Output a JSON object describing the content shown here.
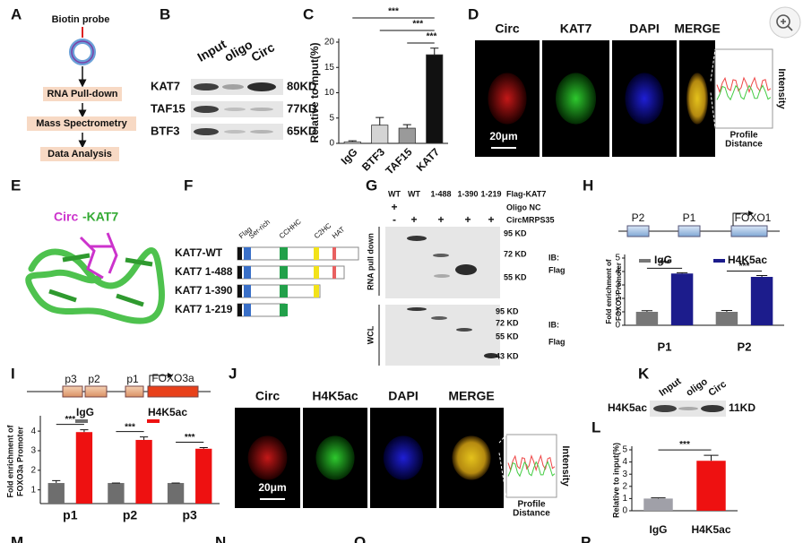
{
  "panel_labels": [
    "A",
    "B",
    "C",
    "D",
    "E",
    "F",
    "G",
    "H",
    "I",
    "J",
    "K",
    "L",
    "M",
    "N",
    "O",
    "P"
  ],
  "a": {
    "probe": "Biotin probe",
    "steps": [
      "RNA Pull-down",
      "Mass Spectrometry",
      "Data Analysis"
    ]
  },
  "b": {
    "lanes": [
      "Input",
      "oligo",
      "Circ"
    ],
    "proteins": [
      "KAT7",
      "TAF15",
      "BTF3"
    ],
    "sizes": [
      "80KD",
      "77KD",
      "65KD"
    ]
  },
  "c": {
    "chart": {
      "type": "bar",
      "ylabel": "Relative to input(%)",
      "categories": [
        "IgG",
        "BTF3",
        "TAF15",
        "KAT7"
      ],
      "series": [
        {
          "colors": [
            "#ffffff",
            "#d4d4d4",
            "#9a9a9a",
            "#111111"
          ],
          "values": [
            0.3,
            3.6,
            3.0,
            17.5
          ],
          "errors": [
            0.2,
            1.5,
            0.7,
            1.3
          ]
        }
      ],
      "ylim": [
        0,
        20
      ],
      "yticks": [
        0,
        5,
        10,
        15,
        20
      ],
      "significance": [
        "***",
        "***",
        "***"
      ]
    }
  },
  "d": {
    "channels": [
      "Circ",
      "KAT7",
      "DAPI",
      "MERGE"
    ],
    "scale": "20μm",
    "profile": [
      "Intensity",
      "Profile",
      "Distance"
    ]
  },
  "e": {
    "title": [
      "Circ",
      "-KAT7"
    ]
  },
  "f": {
    "domains": [
      "Flag",
      "Ser-rich",
      "CCHHC",
      "C2HC",
      "HAT"
    ],
    "constructs": [
      "KAT7-WT",
      "KAT7 1-488",
      "KAT7 1-390",
      "KAT7 1-219"
    ]
  },
  "g": {
    "lanes": [
      "WT",
      "WT",
      "1-488",
      "1-390",
      "1-219"
    ],
    "lane_title": "Flag-KAT7",
    "oligo_label": "Oligo NC",
    "oligo": "+",
    "circ_label": "CircMRPS35",
    "circ": [
      "-",
      "+",
      "+",
      "+",
      "+"
    ],
    "pulldown": "RNA pull down",
    "top_markers": [
      "95 KD",
      "72 KD",
      "55 KD"
    ],
    "ib_top": [
      "IB:",
      "Flag"
    ],
    "wcl": "WCL",
    "bottom_markers": [
      "95 KD",
      "72 KD",
      "55 KD",
      "43 KD"
    ],
    "ib_bottom": [
      "IB:",
      "Flag"
    ]
  },
  "h": {
    "genes": [
      "P2",
      "P1",
      "FOXO1"
    ],
    "chart": {
      "type": "bar",
      "ylabel": [
        "Fold enrichment of",
        "FOXO1 Promoter"
      ],
      "categories": [
        "P1",
        "P2"
      ],
      "series": [
        {
          "name": "IgG",
          "color": "#777777",
          "values": [
            1.0,
            1.0
          ],
          "errors": [
            0.08,
            0.1
          ]
        },
        {
          "name": "H4K5ac",
          "color": "#1c1c8c",
          "values": [
            3.85,
            3.6
          ],
          "errors": [
            0.06,
            0.1
          ]
        }
      ],
      "ylim": [
        0,
        5
      ],
      "yticks": [
        0,
        1,
        2,
        3,
        4,
        5
      ],
      "significance": [
        "***",
        "***"
      ]
    }
  },
  "i": {
    "genes": [
      "p3",
      "p2",
      "p1",
      "FOXO3a"
    ],
    "chart": {
      "type": "bar",
      "ylabel": [
        "Fold enrichment of",
        "FOXO3a Promoter"
      ],
      "categories": [
        "p1",
        "p2",
        "p3"
      ],
      "series": [
        {
          "name": "IgG",
          "color": "#6e6e6e",
          "values": [
            1.35,
            1.35,
            1.35
          ],
          "errors": [
            0.12,
            0,
            0
          ]
        },
        {
          "name": "H4K5ac",
          "color": "#ee1111",
          "values": [
            3.95,
            3.55,
            3.1
          ],
          "errors": [
            0.12,
            0.15,
            0.06
          ]
        }
      ],
      "ylim": [
        0.3,
        4.6
      ],
      "yticks": [
        1,
        2,
        3,
        4
      ],
      "significance": [
        "***",
        "***",
        "***"
      ]
    }
  },
  "j": {
    "channels": [
      "Circ",
      "H4K5ac",
      "DAPI",
      "MERGE"
    ],
    "scale": "20μm",
    "profile": [
      "Intensity",
      "Profile",
      "Distance"
    ]
  },
  "k": {
    "lanes": [
      "Input",
      "oligo",
      "Circ"
    ],
    "protein": "H4K5ac",
    "size": "11KD"
  },
  "l": {
    "chart": {
      "type": "bar",
      "ylabel": "Relative to input(%)",
      "categories": [
        "IgG",
        "H4K5ac"
      ],
      "series": [
        {
          "colors": [
            "#a0a0a8",
            "#ee1111"
          ],
          "values": [
            1.0,
            4.1
          ],
          "errors": [
            0.06,
            0.45
          ]
        }
      ],
      "ylim": [
        0,
        5
      ],
      "yticks": [
        0,
        1,
        2,
        3,
        4,
        5
      ],
      "significance": [
        "***"
      ]
    }
  }
}
